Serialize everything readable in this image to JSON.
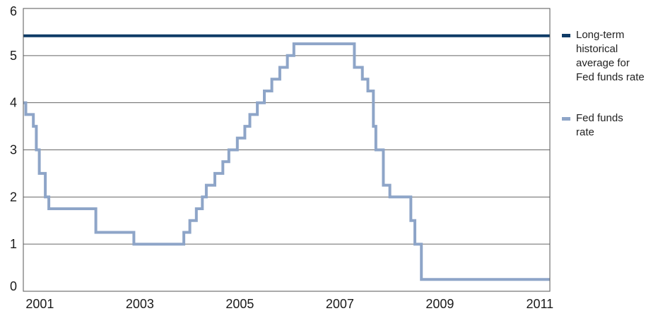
{
  "chart_data": {
    "type": "line",
    "title": "",
    "xlabel": "",
    "ylabel": "",
    "xlim": [
      2000.67,
      2011.2
    ],
    "ylim": [
      0,
      6
    ],
    "grid": true,
    "legend_position": "right",
    "x_ticks": [
      2001,
      2003,
      2005,
      2007,
      2009,
      2011
    ],
    "x_tick_labels": [
      "2001",
      "2003",
      "2005",
      "2007",
      "2009",
      "2011"
    ],
    "y_ticks": [
      0,
      1,
      2,
      3,
      4,
      5,
      6
    ],
    "y_tick_labels": [
      "0",
      "1",
      "2",
      "3",
      "4",
      "5",
      "6"
    ],
    "series": [
      {
        "name": "Long-term historical average for Fed funds rate",
        "legend_lines": [
          "Long-term",
          "historical",
          "average for",
          "Fed funds rate"
        ],
        "color": "#0f3b66",
        "line_style": "horizontal",
        "value": 5.42
      },
      {
        "name": "Fed funds rate",
        "legend_lines": [
          "Fed funds",
          "rate"
        ],
        "color": "#8ea5c8",
        "line_style": "step",
        "points": [
          [
            2000.67,
            4.0
          ],
          [
            2000.72,
            3.75
          ],
          [
            2000.87,
            3.5
          ],
          [
            2000.93,
            3.0
          ],
          [
            2000.99,
            2.5
          ],
          [
            2001.11,
            2.0
          ],
          [
            2001.18,
            1.75
          ],
          [
            2002.12,
            1.25
          ],
          [
            2002.88,
            1.0
          ],
          [
            2003.88,
            1.25
          ],
          [
            2004.0,
            1.5
          ],
          [
            2004.13,
            1.75
          ],
          [
            2004.25,
            2.0
          ],
          [
            2004.33,
            2.25
          ],
          [
            2004.5,
            2.5
          ],
          [
            2004.66,
            2.75
          ],
          [
            2004.78,
            3.0
          ],
          [
            2004.95,
            3.25
          ],
          [
            2005.1,
            3.5
          ],
          [
            2005.2,
            3.75
          ],
          [
            2005.35,
            4.0
          ],
          [
            2005.49,
            4.25
          ],
          [
            2005.64,
            4.5
          ],
          [
            2005.8,
            4.75
          ],
          [
            2005.95,
            5.0
          ],
          [
            2006.08,
            5.25
          ],
          [
            2007.29,
            4.75
          ],
          [
            2007.45,
            4.5
          ],
          [
            2007.56,
            4.25
          ],
          [
            2007.67,
            3.5
          ],
          [
            2007.72,
            3.0
          ],
          [
            2007.87,
            2.25
          ],
          [
            2008.0,
            2.0
          ],
          [
            2008.42,
            1.5
          ],
          [
            2008.5,
            1.0
          ],
          [
            2008.63,
            0.25
          ],
          [
            2011.2,
            0.25
          ]
        ]
      }
    ]
  }
}
